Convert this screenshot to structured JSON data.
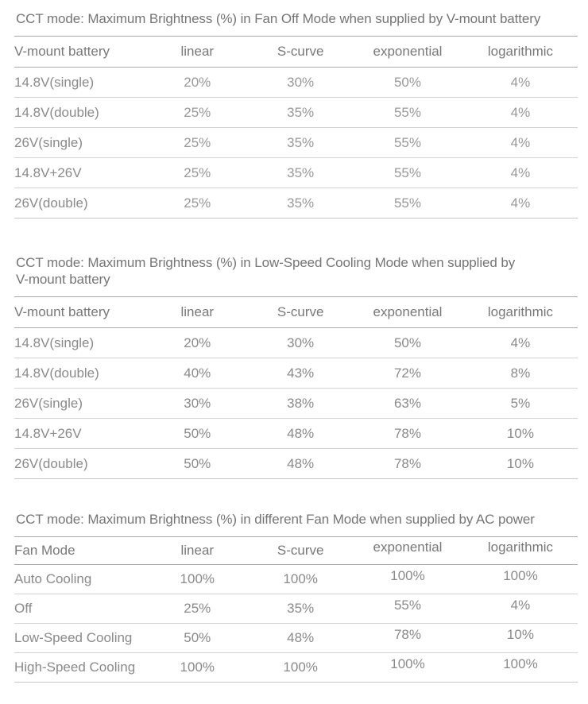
{
  "page": {
    "background": "#ffffff",
    "palette": {
      "title_text": "#757575",
      "header_text": "#787878",
      "cell_text": "#8a8a8a",
      "rule_strong": "#aaaaaa",
      "rule_light": "#d3d3d3"
    }
  },
  "tables": [
    {
      "title": "CCT mode: Maximum Brightness (%) in Fan Off Mode when supplied by V-mount battery",
      "columns": [
        "V-mount battery",
        "linear",
        "S-curve",
        "exponential",
        "logarithmic"
      ],
      "rows": [
        [
          "14.8V(single)",
          "20%",
          "30%",
          "50%",
          "4%"
        ],
        [
          "14.8V(double)",
          "25%",
          "35%",
          "55%",
          "4%"
        ],
        [
          "26V(single)",
          "25%",
          "35%",
          "55%",
          "4%"
        ],
        [
          "14.8V+26V",
          "25%",
          "35%",
          "55%",
          "4%"
        ],
        [
          "26V(double)",
          "25%",
          "35%",
          "55%",
          "4%"
        ]
      ]
    },
    {
      "title": "CCT mode: Maximum Brightness (%)  in Low-Speed Cooling Mode when supplied by V-mount battery",
      "columns": [
        "V-mount battery",
        "linear",
        "S-curve",
        "exponential",
        "logarithmic"
      ],
      "rows": [
        [
          "14.8V(single)",
          "20%",
          "30%",
          "50%",
          "4%"
        ],
        [
          "14.8V(double)",
          "40%",
          "43%",
          "72%",
          "8%"
        ],
        [
          "26V(single)",
          "30%",
          "38%",
          "63%",
          "5%"
        ],
        [
          "14.8V+26V",
          "50%",
          "48%",
          "78%",
          "10%"
        ],
        [
          "26V(double)",
          "50%",
          "48%",
          "78%",
          "10%"
        ]
      ]
    },
    {
      "title": "CCT mode: Maximum Brightness (%) in different Fan Mode when supplied by AC power",
      "columns": [
        "Fan Mode",
        "linear",
        "S-curve",
        "exponential",
        "logarithmic"
      ],
      "rows": [
        [
          "Auto Cooling",
          "100%",
          "100%",
          "100%",
          "100%"
        ],
        [
          "Off",
          "25%",
          "35%",
          "55%",
          "4%"
        ],
        [
          "Low-Speed Cooling",
          "50%",
          "48%",
          "78%",
          "10%"
        ],
        [
          "High-Speed Cooling",
          "100%",
          "100%",
          "100%",
          "100%"
        ]
      ]
    }
  ]
}
